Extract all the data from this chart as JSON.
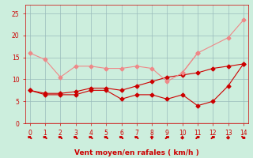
{
  "x": [
    0,
    1,
    2,
    3,
    4,
    5,
    6,
    7,
    8,
    9,
    10,
    11,
    12,
    13,
    14
  ],
  "line1_y": [
    7.5,
    6.5,
    6.5,
    6.5,
    7.5,
    7.5,
    5.5,
    6.5,
    6.5,
    5.5,
    6.5,
    4.0,
    5.0,
    8.5,
    13.5
  ],
  "line2_y": [
    7.5,
    6.8,
    6.8,
    7.2,
    8.0,
    8.0,
    7.5,
    8.5,
    9.5,
    10.5,
    11.0,
    11.5,
    12.5,
    13.0,
    13.5
  ],
  "line3_y": [
    16.0,
    14.5,
    10.5,
    13.0,
    13.0,
    12.5,
    12.5,
    13.0,
    12.5,
    9.5,
    11.5,
    16.0,
    null,
    null,
    null
  ],
  "line4_y": [
    null,
    null,
    null,
    null,
    null,
    null,
    null,
    null,
    null,
    null,
    11.5,
    16.0,
    null,
    19.5,
    23.5
  ],
  "line1_color": "#cc0000",
  "line2_color": "#cc0000",
  "line3_color": "#ee8888",
  "line4_color": "#ee8888",
  "marker": "D",
  "marker_size": 2.5,
  "background_color": "#cceedd",
  "grid_color": "#99bbbb",
  "xlabel": "Vent moyen/en rafales ( km/h )",
  "xlabel_color": "#cc0000",
  "xlabel_fontsize": 6.5,
  "tick_color": "#cc0000",
  "tick_fontsize": 5.5,
  "xlim": [
    -0.3,
    14.3
  ],
  "ylim": [
    0,
    27
  ],
  "yticks": [
    0,
    5,
    10,
    15,
    20,
    25
  ],
  "xticks": [
    0,
    1,
    2,
    3,
    4,
    5,
    6,
    7,
    8,
    9,
    10,
    11,
    12,
    13,
    14
  ],
  "arrow_angles": [
    225,
    225,
    225,
    225,
    225,
    225,
    225,
    225,
    180,
    135,
    0,
    135,
    135,
    0,
    45
  ]
}
